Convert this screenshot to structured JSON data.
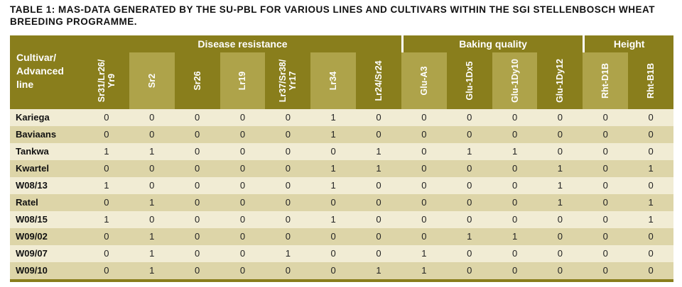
{
  "caption": "TABLE 1: MAS-DATA GENERATED BY THE SU-PBL FOR VARIOUS LINES AND CULTIVARS WITHIN THE SGI STELLENBOSCH WHEAT BREEDING PROGRAMME.",
  "corner_label": "Cultivar/\nAdvanced\nline",
  "groups": [
    {
      "label": "Disease resistance",
      "span": 7
    },
    {
      "label": "Baking quality",
      "span": 4
    },
    {
      "label": "Height",
      "span": 2
    }
  ],
  "columns": [
    "Sr31/Lr26/\nYr9",
    "Sr2",
    "Sr26",
    "Lr19",
    "Lr37/Sr38/\nYr17",
    "Lr34",
    "Lr24/Sr24",
    "Glu-A3",
    "Glu-1Dx5",
    "Glu-1Dy10",
    "Glu-1Dy12",
    "Rht-D1B",
    "Rht-B1B"
  ],
  "rows": [
    {
      "name": "Kariega",
      "values": [
        0,
        0,
        0,
        0,
        0,
        1,
        0,
        0,
        0,
        0,
        0,
        0,
        0
      ]
    },
    {
      "name": "Baviaans",
      "values": [
        0,
        0,
        0,
        0,
        0,
        1,
        0,
        0,
        0,
        0,
        0,
        0,
        0
      ]
    },
    {
      "name": "Tankwa",
      "values": [
        1,
        1,
        0,
        0,
        0,
        0,
        1,
        0,
        1,
        1,
        0,
        0,
        0
      ]
    },
    {
      "name": "Kwartel",
      "values": [
        0,
        0,
        0,
        0,
        0,
        1,
        1,
        0,
        0,
        0,
        1,
        0,
        1
      ]
    },
    {
      "name": "W08/13",
      "values": [
        1,
        0,
        0,
        0,
        0,
        1,
        0,
        0,
        0,
        0,
        1,
        0,
        0
      ]
    },
    {
      "name": "Ratel",
      "values": [
        0,
        1,
        0,
        0,
        0,
        0,
        0,
        0,
        0,
        0,
        1,
        0,
        1
      ]
    },
    {
      "name": "W08/15",
      "values": [
        1,
        0,
        0,
        0,
        0,
        1,
        0,
        0,
        0,
        0,
        0,
        0,
        1
      ]
    },
    {
      "name": "W09/02",
      "values": [
        0,
        1,
        0,
        0,
        0,
        0,
        0,
        0,
        1,
        1,
        0,
        0,
        0
      ]
    },
    {
      "name": "W09/07",
      "values": [
        0,
        1,
        0,
        0,
        1,
        0,
        0,
        1,
        0,
        0,
        0,
        0,
        0
      ]
    },
    {
      "name": "W09/10",
      "values": [
        0,
        1,
        0,
        0,
        0,
        0,
        1,
        1,
        0,
        0,
        0,
        0,
        0
      ]
    }
  ],
  "colors": {
    "header_dark": "#897e1c",
    "header_light": "#aea34a",
    "row_light": "#f1ecd4",
    "row_dark": "#ddd5a8"
  }
}
